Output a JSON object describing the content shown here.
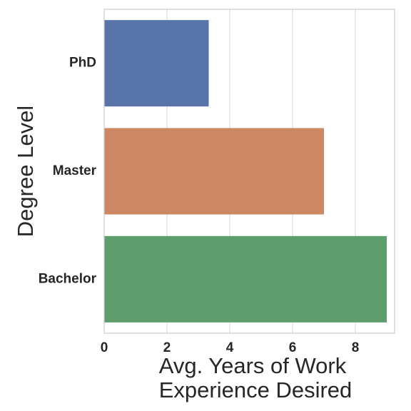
{
  "chart_data": {
    "type": "bar",
    "orientation": "horizontal",
    "categories": [
      "PhD",
      "Master",
      "Bachelor"
    ],
    "values": [
      3.33,
      7.0,
      9.0
    ],
    "colors": [
      "#5874a8",
      "#cd8863",
      "#5e9e6d"
    ],
    "xlabel_lines": [
      "Avg. Years of Work",
      "Experience Desired"
    ],
    "ylabel": "Degree Level",
    "xlim": [
      0,
      9.25
    ],
    "xticks": [
      0,
      2,
      4,
      6,
      8
    ],
    "grid": "vertical",
    "legend": "none"
  }
}
